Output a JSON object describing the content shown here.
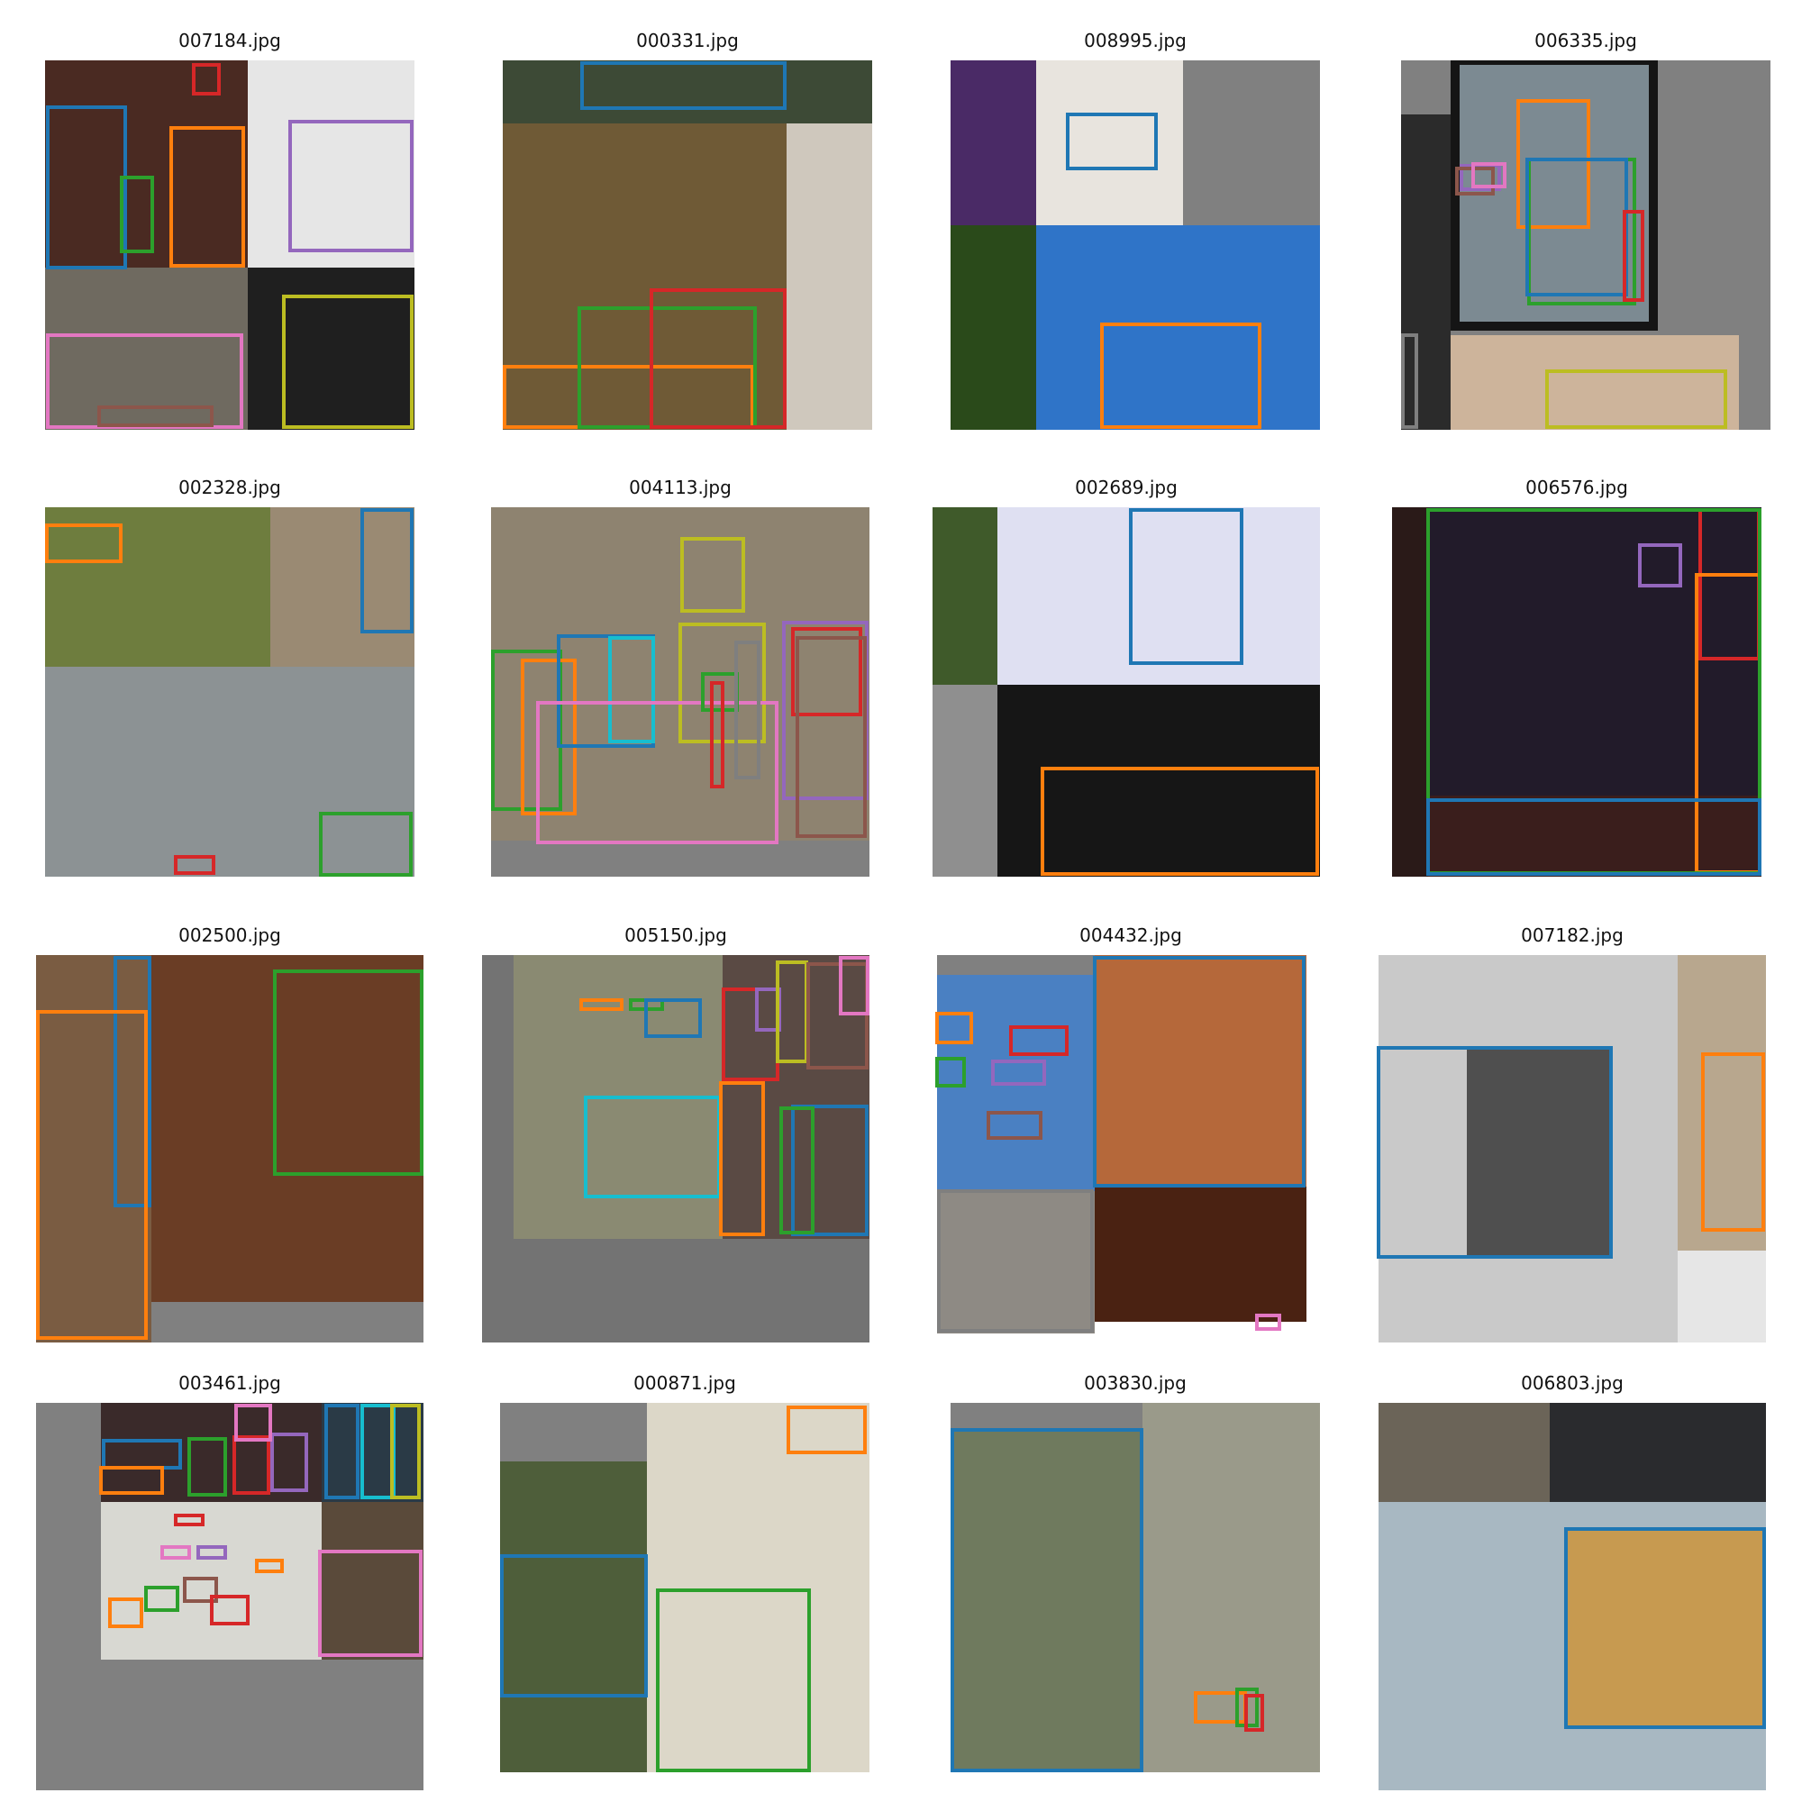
{
  "figure": {
    "panels": [
      {
        "title": "007184.jpg"
      },
      {
        "title": "000331.jpg"
      },
      {
        "title": "008995.jpg"
      },
      {
        "title": "006335.jpg"
      },
      {
        "title": "002328.jpg"
      },
      {
        "title": "004113.jpg"
      },
      {
        "title": "002689.jpg"
      },
      {
        "title": "006576.jpg"
      },
      {
        "title": "002500.jpg"
      },
      {
        "title": "005150.jpg"
      },
      {
        "title": "004432.jpg"
      },
      {
        "title": "007182.jpg"
      },
      {
        "title": "003461.jpg"
      },
      {
        "title": "000871.jpg"
      },
      {
        "title": "003830.jpg"
      },
      {
        "title": "006803.jpg"
      }
    ],
    "box_colors": {
      "blue": "#1f77b4",
      "orange": "#ff7f0e",
      "green": "#2ca02c",
      "red": "#d62728",
      "purple": "#9467bd",
      "brown": "#8c564b",
      "pink": "#e377c2",
      "gray": "#7f7f7f",
      "olive": "#bcbd22",
      "cyan": "#17becf"
    },
    "padding_color": "#808080"
  }
}
